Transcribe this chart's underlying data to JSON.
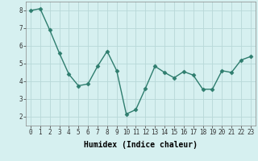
{
  "x": [
    0,
    1,
    2,
    3,
    4,
    5,
    6,
    7,
    8,
    9,
    10,
    11,
    12,
    13,
    14,
    15,
    16,
    17,
    18,
    19,
    20,
    21,
    22,
    23
  ],
  "y": [
    8.0,
    8.1,
    6.9,
    5.6,
    4.4,
    3.75,
    3.85,
    4.85,
    5.7,
    4.6,
    2.15,
    2.4,
    3.6,
    4.85,
    4.5,
    4.2,
    4.55,
    4.35,
    3.55,
    3.55,
    4.6,
    4.5,
    5.2,
    5.4
  ],
  "line_color": "#2e7d6e",
  "marker": "D",
  "marker_size": 2.5,
  "bg_color": "#d6f0f0",
  "grid_color": "#b8d8d8",
  "xlabel": "Humidex (Indice chaleur)",
  "ylabel": "",
  "xlim": [
    -0.5,
    23.5
  ],
  "ylim": [
    1.5,
    8.5
  ],
  "yticks": [
    2,
    3,
    4,
    5,
    6,
    7,
    8
  ],
  "xticks": [
    0,
    1,
    2,
    3,
    4,
    5,
    6,
    7,
    8,
    9,
    10,
    11,
    12,
    13,
    14,
    15,
    16,
    17,
    18,
    19,
    20,
    21,
    22,
    23
  ],
  "tick_fontsize": 5.5,
  "xlabel_fontsize": 7,
  "line_width": 1.0
}
